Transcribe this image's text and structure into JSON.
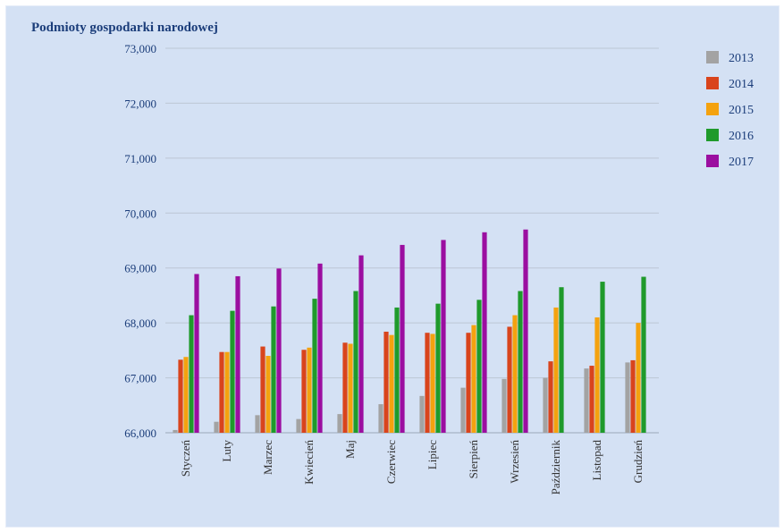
{
  "chart_data": {
    "type": "bar",
    "title": "Podmioty gospodarki narodowej",
    "xlabel": "",
    "ylabel": "",
    "ylim": [
      66000,
      73000
    ],
    "yticks": [
      66000,
      67000,
      68000,
      69000,
      70000,
      71000,
      72000,
      73000
    ],
    "ytick_labels": [
      "66,000",
      "67,000",
      "68,000",
      "69,000",
      "70,000",
      "71,000",
      "72,000",
      "73,000"
    ],
    "categories": [
      "Styczeń",
      "Luty",
      "Marzec",
      "Kwiecień",
      "Maj",
      "Czerwiec",
      "Lipiec",
      "Sierpień",
      "Wrzesień",
      "Październik",
      "Listopad",
      "Grudzień"
    ],
    "series": [
      {
        "name": "2013",
        "color": "#a3a3a3",
        "values": [
          66050,
          66200,
          66320,
          66250,
          66340,
          66520,
          66670,
          66820,
          66980,
          67000,
          67170,
          67280
        ]
      },
      {
        "name": "2014",
        "color": "#d9441c",
        "values": [
          67330,
          67470,
          67570,
          67510,
          67640,
          67840,
          67820,
          67820,
          67930,
          67300,
          67220,
          67320
        ]
      },
      {
        "name": "2015",
        "color": "#f4a20f",
        "values": [
          67380,
          67470,
          67400,
          67550,
          67620,
          67780,
          67800,
          67960,
          68140,
          68280,
          68100,
          68000
        ]
      },
      {
        "name": "2016",
        "color": "#1f9a2b",
        "values": [
          68140,
          68220,
          68300,
          68440,
          68580,
          68280,
          68350,
          68420,
          68580,
          68650,
          68750,
          68840
        ]
      },
      {
        "name": "2017",
        "color": "#9b0ea0",
        "values": [
          68890,
          68850,
          68990,
          69080,
          69230,
          69420,
          69510,
          69650,
          69700,
          null,
          null,
          null
        ]
      }
    ],
    "grid": true,
    "legend": "top-right"
  }
}
